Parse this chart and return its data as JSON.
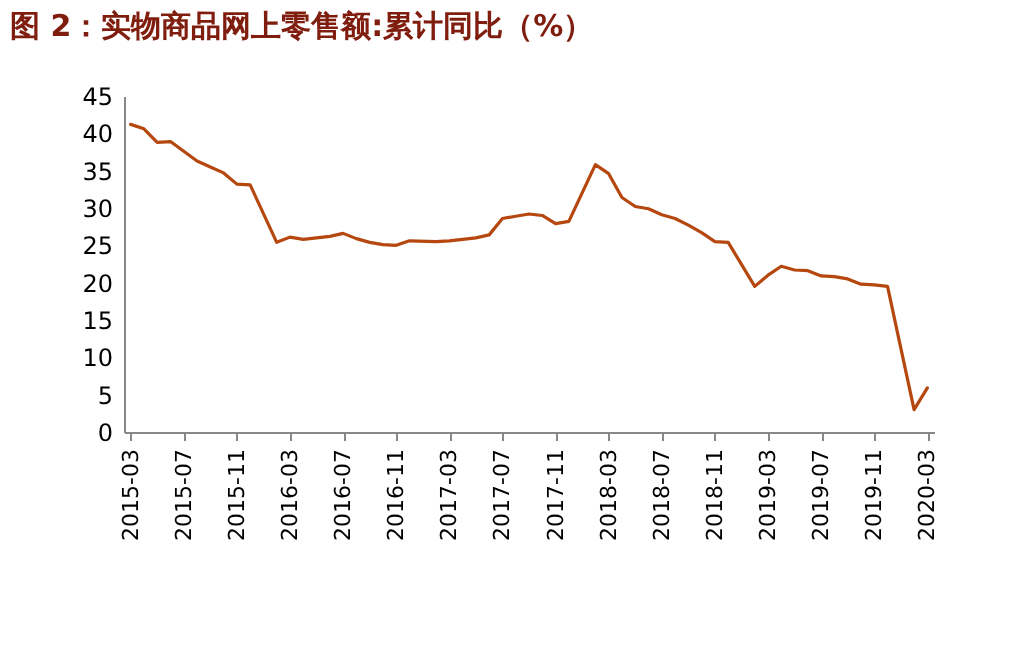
{
  "chart_data": {
    "type": "line",
    "title": "图 2：实物商品网上零售额:累计同比（%）",
    "categories": [
      "2015-03",
      null,
      null,
      null,
      "2015-07",
      null,
      null,
      null,
      "2015-11",
      null,
      null,
      null,
      "2016-03",
      null,
      null,
      null,
      "2016-07",
      null,
      null,
      null,
      "2016-11",
      null,
      null,
      null,
      "2017-03",
      null,
      null,
      null,
      "2017-07",
      null,
      null,
      null,
      "2017-11",
      null,
      null,
      null,
      "2018-03",
      null,
      null,
      null,
      "2018-07",
      null,
      null,
      null,
      "2018-11",
      null,
      null,
      null,
      "2019-03",
      null,
      null,
      null,
      "2019-07",
      null,
      null,
      null,
      "2019-11",
      null,
      null,
      null,
      "2020-03"
    ],
    "series": [
      {
        "color": "#b5470f",
        "values": [
          41.2,
          40.6,
          38.8,
          38.9,
          37.6,
          36.3,
          35.5,
          34.7,
          33.2,
          33.1,
          null,
          25.4,
          26.1,
          25.8,
          26.0,
          26.2,
          26.6,
          25.9,
          25.4,
          25.1,
          25.0,
          25.6,
          null,
          25.5,
          25.6,
          25.8,
          26.0,
          26.4,
          28.6,
          28.9,
          29.2,
          29.0,
          27.9,
          28.2,
          null,
          35.8,
          34.6,
          31.4,
          30.2,
          29.9,
          29.1,
          28.6,
          27.7,
          26.7,
          25.5,
          25.4,
          null,
          19.5,
          21.0,
          22.2,
          21.7,
          21.6,
          20.9,
          20.8,
          20.5,
          19.8,
          19.7,
          19.5,
          null,
          3.0,
          5.9
        ]
      }
    ],
    "ylim": [
      0,
      45
    ],
    "yticks": [
      0,
      5,
      10,
      15,
      20,
      25,
      30,
      35,
      40,
      45
    ],
    "grid": false,
    "marker": "none",
    "line_style": "solid"
  }
}
